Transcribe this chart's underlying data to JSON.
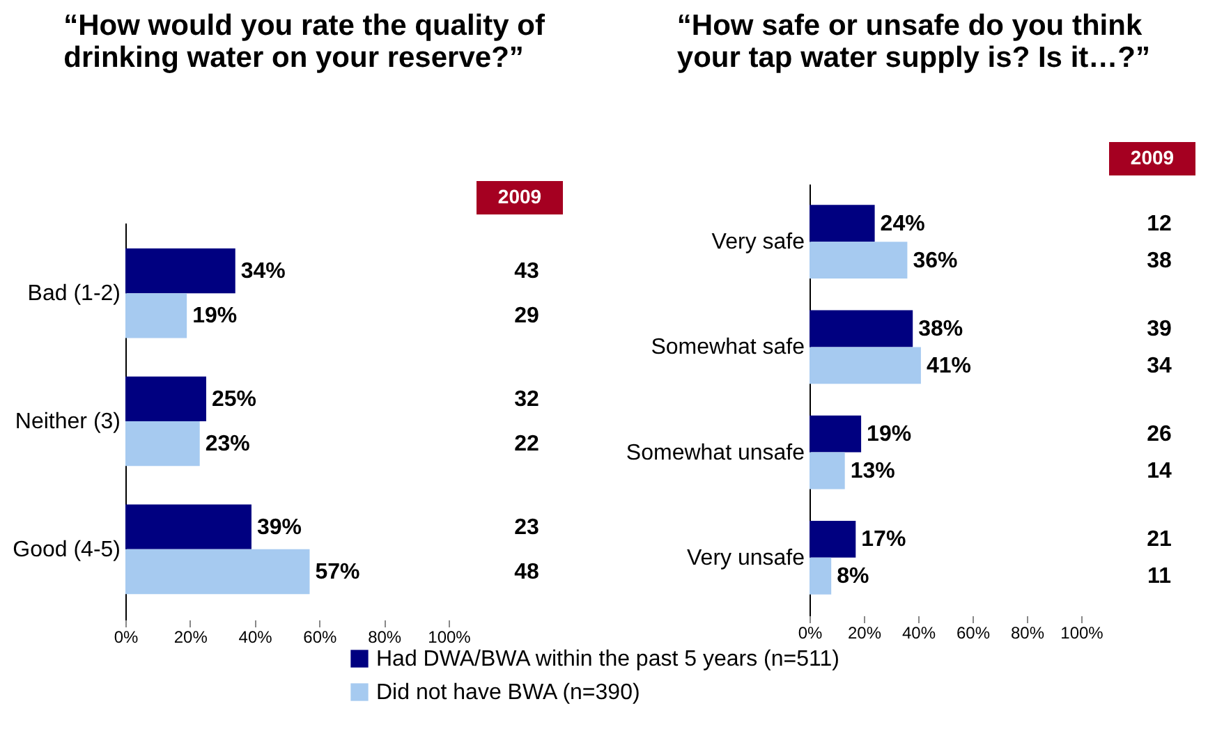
{
  "chart_data": [
    {
      "type": "bar",
      "orientation": "horizontal",
      "title": "“How would you rate the quality of drinking water on your reserve?”",
      "categories": [
        "Bad (1-2)",
        "Neither (3)",
        "Good (4-5)"
      ],
      "series": [
        {
          "name": "Had DWA/BWA within the past 5 years (n=511)",
          "color": "#000080",
          "values": [
            34,
            25,
            39
          ],
          "value_labels": [
            "34%",
            "25%",
            "39%"
          ]
        },
        {
          "name": "Did not have BWA (n=390)",
          "color": "#a6caf0",
          "values": [
            19,
            23,
            57
          ],
          "value_labels": [
            "19%",
            "23%",
            "57%"
          ]
        }
      ],
      "xlim": [
        0,
        100
      ],
      "xticks": [
        {
          "value": 0,
          "label": "0%"
        },
        {
          "value": 20,
          "label": "20%"
        },
        {
          "value": 40,
          "label": "40%"
        },
        {
          "value": 60,
          "label": "60%"
        },
        {
          "value": 80,
          "label": "80%"
        },
        {
          "value": 100,
          "label": "100%"
        }
      ],
      "annotations": [
        "2009",
        "43",
        "29",
        "32",
        "22",
        "23",
        "48"
      ],
      "legend": "bottom"
    },
    {
      "type": "bar",
      "orientation": "horizontal",
      "title": "“How safe or unsafe do you think your tap water supply is? Is it…?”",
      "categories": [
        "Very safe",
        "Somewhat safe",
        "Somewhat unsafe",
        "Very unsafe"
      ],
      "series": [
        {
          "color": "#000080",
          "values": [
            24,
            38,
            19,
            17
          ],
          "value_labels": [
            "24%",
            "38%",
            "19%",
            "17%"
          ]
        },
        {
          "color": "#a6caf0",
          "values": [
            36,
            41,
            13,
            8
          ],
          "value_labels": [
            "36%",
            "41%",
            "13%",
            "8%"
          ]
        }
      ],
      "xlim": [
        0,
        100
      ],
      "xticks": [
        {
          "value": 0,
          "label": "0%"
        },
        {
          "value": 20,
          "label": "20%"
        },
        {
          "value": 40,
          "label": "40%"
        },
        {
          "value": 60,
          "label": "60%"
        },
        {
          "value": 80,
          "label": "80%"
        },
        {
          "value": 100,
          "label": "100%"
        }
      ],
      "annotations": [
        "2009",
        "12",
        "38",
        "39",
        "34",
        "26",
        "14",
        "21",
        "11"
      ]
    }
  ]
}
